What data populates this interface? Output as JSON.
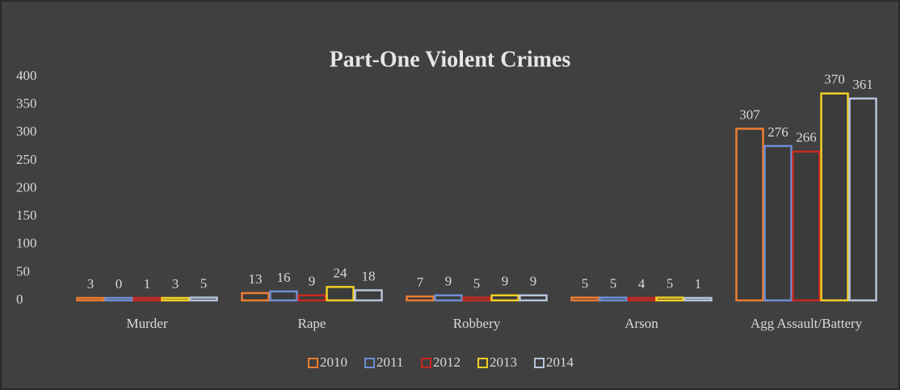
{
  "chart_data": {
    "type": "bar",
    "title": "Part-One Violent Crimes",
    "categories": [
      "Murder",
      "Rape",
      "Robbery",
      "Arson",
      "Agg Assault/Battery"
    ],
    "series": [
      {
        "name": "2010",
        "color": "#ed7d31",
        "values": [
          3,
          13,
          7,
          5,
          307
        ]
      },
      {
        "name": "2011",
        "color": "#6f8fd6",
        "values": [
          0,
          16,
          9,
          5,
          276
        ]
      },
      {
        "name": "2012",
        "color": "#c8281e",
        "values": [
          1,
          9,
          5,
          4,
          266
        ]
      },
      {
        "name": "2013",
        "color": "#f2d024",
        "values": [
          3,
          24,
          9,
          5,
          370
        ]
      },
      {
        "name": "2014",
        "color": "#b8c4dc",
        "values": [
          5,
          18,
          9,
          1,
          361
        ]
      }
    ],
    "ylim": [
      0,
      400
    ],
    "yticks": [
      0,
      50,
      100,
      150,
      200,
      250,
      300,
      350,
      400
    ],
    "grid": false,
    "legend": "bottom"
  }
}
